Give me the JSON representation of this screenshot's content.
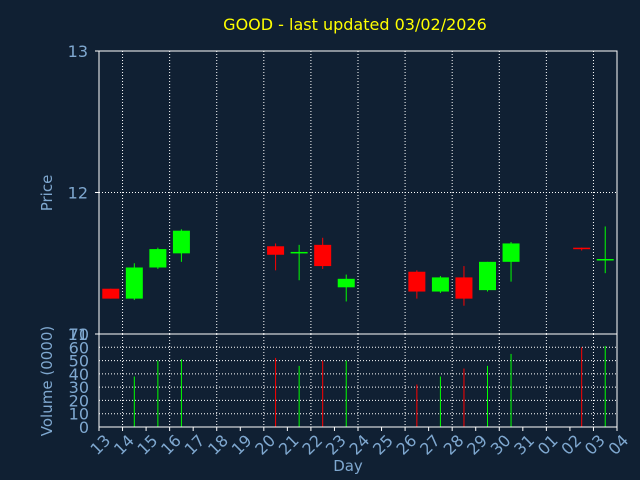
{
  "chart_data": {
    "type": "candlestick",
    "title": "GOOD - last updated 03/02/2026",
    "xlabel": "Day",
    "ylabel": "Price",
    "volume_ylabel": "Volume (0000)",
    "ylim": [
      11,
      13
    ],
    "price_ticks": [
      "11",
      "12",
      "13"
    ],
    "volume_ylim": [
      0,
      70
    ],
    "volume_ticks": [
      "0",
      "10",
      "20",
      "30",
      "40",
      "50",
      "60",
      "70"
    ],
    "x_ticks": [
      "13",
      "14",
      "15",
      "16",
      "17",
      "18",
      "19",
      "20",
      "21",
      "22",
      "23",
      "24",
      "25",
      "26",
      "27",
      "28",
      "29",
      "30",
      "31",
      "01",
      "02",
      "03",
      "04"
    ],
    "grid": true,
    "colors": {
      "up": "#00ff00",
      "down": "#ff0000",
      "title": "#ffff00",
      "axis_text": "#7fa8d0",
      "grid": "#ffffff"
    },
    "candles": [
      {
        "day": "13",
        "open": 11.32,
        "close": 11.25,
        "high": 11.32,
        "low": 11.25,
        "volume": 0
      },
      {
        "day": "14",
        "open": 11.25,
        "close": 11.47,
        "high": 11.5,
        "low": 11.24,
        "volume": 38
      },
      {
        "day": "15",
        "open": 11.47,
        "close": 11.6,
        "high": 11.61,
        "low": 11.46,
        "volume": 50
      },
      {
        "day": "16",
        "open": 11.57,
        "close": 11.73,
        "high": 11.74,
        "low": 11.51,
        "volume": 51
      },
      {
        "day": "20",
        "open": 11.62,
        "close": 11.56,
        "high": 11.64,
        "low": 11.45,
        "volume": 52
      },
      {
        "day": "21",
        "open": 11.57,
        "close": 11.58,
        "high": 11.63,
        "low": 11.38,
        "volume": 46
      },
      {
        "day": "22",
        "open": 11.63,
        "close": 11.48,
        "high": 11.68,
        "low": 11.46,
        "volume": 50
      },
      {
        "day": "23",
        "open": 11.33,
        "close": 11.39,
        "high": 11.42,
        "low": 11.23,
        "volume": 50
      },
      {
        "day": "26",
        "open": 11.44,
        "close": 11.3,
        "high": 11.45,
        "low": 11.25,
        "volume": 32
      },
      {
        "day": "27",
        "open": 11.3,
        "close": 11.4,
        "high": 11.41,
        "low": 11.29,
        "volume": 38
      },
      {
        "day": "28",
        "open": 11.4,
        "close": 11.25,
        "high": 11.48,
        "low": 11.2,
        "volume": 44
      },
      {
        "day": "29",
        "open": 11.31,
        "close": 11.51,
        "high": 11.51,
        "low": 11.3,
        "volume": 46
      },
      {
        "day": "30",
        "open": 11.51,
        "close": 11.64,
        "high": 11.65,
        "low": 11.37,
        "volume": 55
      },
      {
        "day": "02",
        "open": 11.61,
        "close": 11.6,
        "high": 11.61,
        "low": 11.59,
        "volume": 60
      },
      {
        "day": "03",
        "open": 11.52,
        "close": 11.53,
        "high": 11.76,
        "low": 11.43,
        "volume": 61
      }
    ]
  }
}
